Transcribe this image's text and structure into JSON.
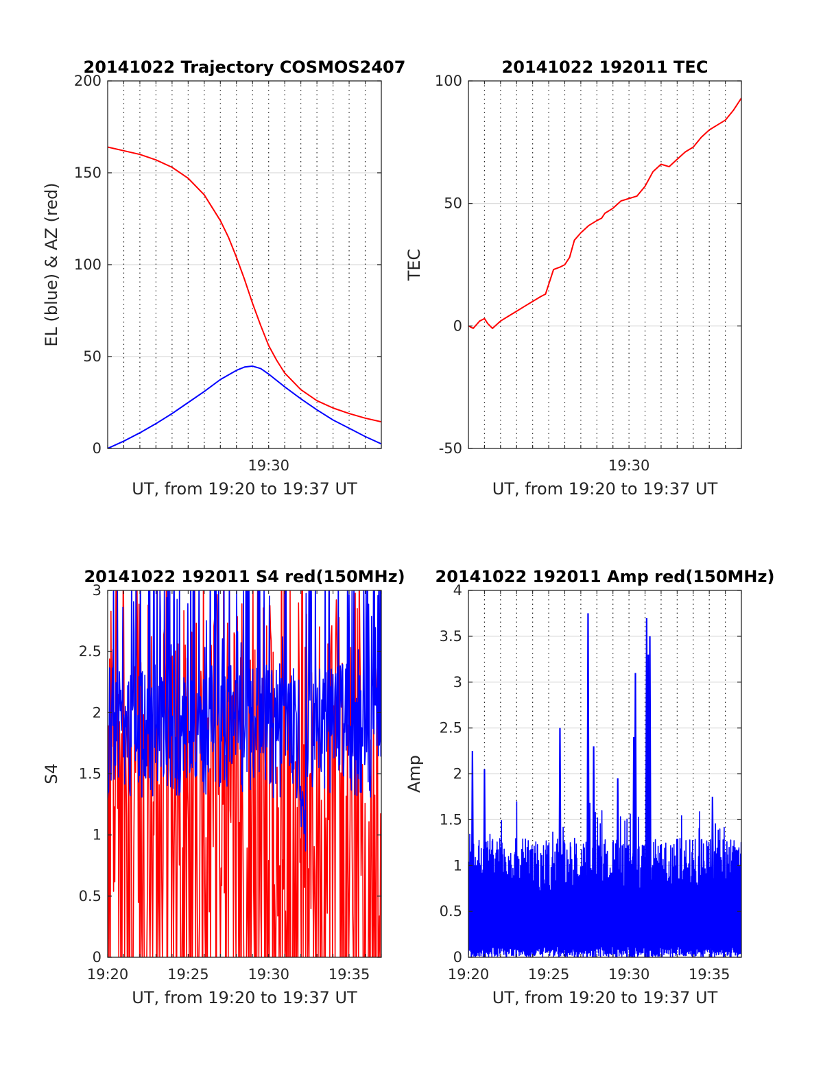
{
  "figure": {
    "background": "#ffffff"
  },
  "chart_data": [
    {
      "type": "line",
      "title": "20141022 Trajectory COSMOS2407",
      "xlabel": "UT, from 19:20 to 19:37 UT",
      "ylabel": "EL (blue) & AZ (red)",
      "xlim": [
        0,
        17
      ],
      "ylim": [
        0,
        200
      ],
      "yticks": [
        0,
        50,
        100,
        150,
        200
      ],
      "xticks": [
        {
          "v": 10,
          "label": "19:30"
        }
      ],
      "grid": {
        "vertical": "dotted-every-minute",
        "horizontal": "light"
      },
      "series": [
        {
          "name": "AZ",
          "color": "#ff0000",
          "kind": "line",
          "x": [
            0,
            2,
            3,
            4,
            5,
            6,
            7,
            7.5,
            8,
            8.5,
            9,
            9.5,
            10,
            10.5,
            11,
            12,
            13,
            14,
            15,
            16,
            17
          ],
          "y": [
            164,
            160,
            157,
            153,
            147,
            138,
            124,
            115,
            104,
            92,
            79,
            67,
            56,
            48,
            41,
            32,
            26,
            22,
            19,
            16.5,
            14.5
          ]
        },
        {
          "name": "EL",
          "color": "#0000ff",
          "kind": "line",
          "x": [
            0,
            1,
            2,
            3,
            4,
            5,
            6,
            7,
            8,
            8.5,
            9,
            9.5,
            10,
            11,
            12,
            13,
            14,
            15,
            16,
            17
          ],
          "y": [
            0,
            4,
            8.5,
            13.5,
            19,
            25,
            31,
            37.5,
            42.5,
            44.3,
            44.8,
            43.5,
            40.5,
            33.5,
            27,
            21,
            15.5,
            11,
            6.5,
            2.5
          ]
        }
      ]
    },
    {
      "type": "line",
      "title": "20141022 192011 TEC",
      "xlabel": "UT, from 19:20 to 19:37 UT",
      "ylabel": "TEC",
      "xlim": [
        0,
        17
      ],
      "ylim": [
        -50,
        100
      ],
      "yticks": [
        -50,
        0,
        50,
        100
      ],
      "xticks": [
        {
          "v": 10,
          "label": "19:30"
        }
      ],
      "grid": {
        "vertical": "dotted-every-minute",
        "horizontal": "light"
      },
      "series": [
        {
          "name": "TEC",
          "color": "#ff0000",
          "kind": "line",
          "x": [
            0,
            0.3,
            0.7,
            1,
            1.2,
            1.5,
            2,
            2.5,
            3,
            3.5,
            4,
            4.5,
            4.8,
            5,
            5.3,
            5.7,
            6,
            6.3,
            6.6,
            7,
            7.5,
            8,
            8.3,
            8.5,
            9,
            9.5,
            10,
            10.5,
            11,
            11.5,
            12,
            12.5,
            13,
            13.5,
            14,
            14.5,
            15,
            15.5,
            16,
            16.5,
            17
          ],
          "y": [
            0,
            -1,
            2,
            3,
            1,
            -1,
            2,
            4,
            6,
            8,
            10,
            12,
            13,
            17,
            23,
            24,
            25,
            28,
            35,
            38,
            41,
            43,
            44,
            46,
            48,
            51,
            52,
            53,
            57,
            63,
            66,
            65,
            68,
            71,
            73,
            77,
            80,
            82,
            84,
            88,
            93
          ]
        }
      ]
    },
    {
      "type": "line",
      "title": "20141022 192011 S4 red(150MHz)",
      "xlabel": "UT, from 19:20 to 19:37 UT",
      "ylabel": "S4",
      "xlim": [
        0,
        17
      ],
      "ylim": [
        0,
        3
      ],
      "yticks": [
        0,
        0.5,
        1,
        1.5,
        2,
        2.5,
        3
      ],
      "xticks": [
        {
          "v": 0,
          "label": "19:20"
        },
        {
          "v": 5,
          "label": "19:25"
        },
        {
          "v": 10,
          "label": "19:30"
        },
        {
          "v": 15,
          "label": "19:35"
        }
      ],
      "grid": {
        "vertical": "none",
        "horizontal": "none"
      },
      "series": [
        {
          "name": "S4 red",
          "color": "#ff0000",
          "kind": "noise",
          "count": 420,
          "seed": 7,
          "base": 1.6,
          "spread": 1.3,
          "dropProb": 0.38,
          "drop": 0
        },
        {
          "name": "S4 blue",
          "color": "#0000ff",
          "kind": "noise",
          "count": 560,
          "seed": 19,
          "base": 1.85,
          "spread": 0.55,
          "dropProb": 0,
          "drop": 0
        }
      ]
    },
    {
      "type": "line",
      "title": "20141022 192011 Amp red(150MHz)",
      "xlabel": "UT, from 19:20 to 19:37 UT",
      "ylabel": "Amp",
      "xlim": [
        0,
        17
      ],
      "ylim": [
        0,
        4
      ],
      "yticks": [
        0,
        0.5,
        1,
        1.5,
        2,
        2.5,
        3,
        3.5,
        4
      ],
      "yticklabels": [
        "0",
        "0.5",
        "1",
        "1.5",
        "2",
        "2.5",
        "3",
        "3.5",
        "4"
      ],
      "xticks": [
        {
          "v": 0,
          "label": "19:20"
        },
        {
          "v": 5,
          "label": "19:25"
        },
        {
          "v": 10,
          "label": "19:30"
        },
        {
          "v": 15,
          "label": "19:35"
        }
      ],
      "grid": {
        "vertical": "dotted-every-minute",
        "horizontal": "light"
      },
      "series": [
        {
          "name": "Amp",
          "color": "#0000ff",
          "kind": "amp",
          "count": 1000,
          "seed": 3,
          "base": 1.3,
          "peaks": [
            {
              "x": 0.25,
              "y": 2.25
            },
            {
              "x": 1.0,
              "y": 2.05
            },
            {
              "x": 5.7,
              "y": 2.5
            },
            {
              "x": 7.45,
              "y": 3.75
            },
            {
              "x": 7.8,
              "y": 2.3
            },
            {
              "x": 9.3,
              "y": 1.95
            },
            {
              "x": 10.4,
              "y": 3.1
            },
            {
              "x": 10.3,
              "y": 2.4
            },
            {
              "x": 11.1,
              "y": 3.7
            },
            {
              "x": 11.3,
              "y": 3.5
            },
            {
              "x": 11.2,
              "y": 3.3
            },
            {
              "x": 15.2,
              "y": 1.75
            }
          ]
        }
      ]
    }
  ]
}
